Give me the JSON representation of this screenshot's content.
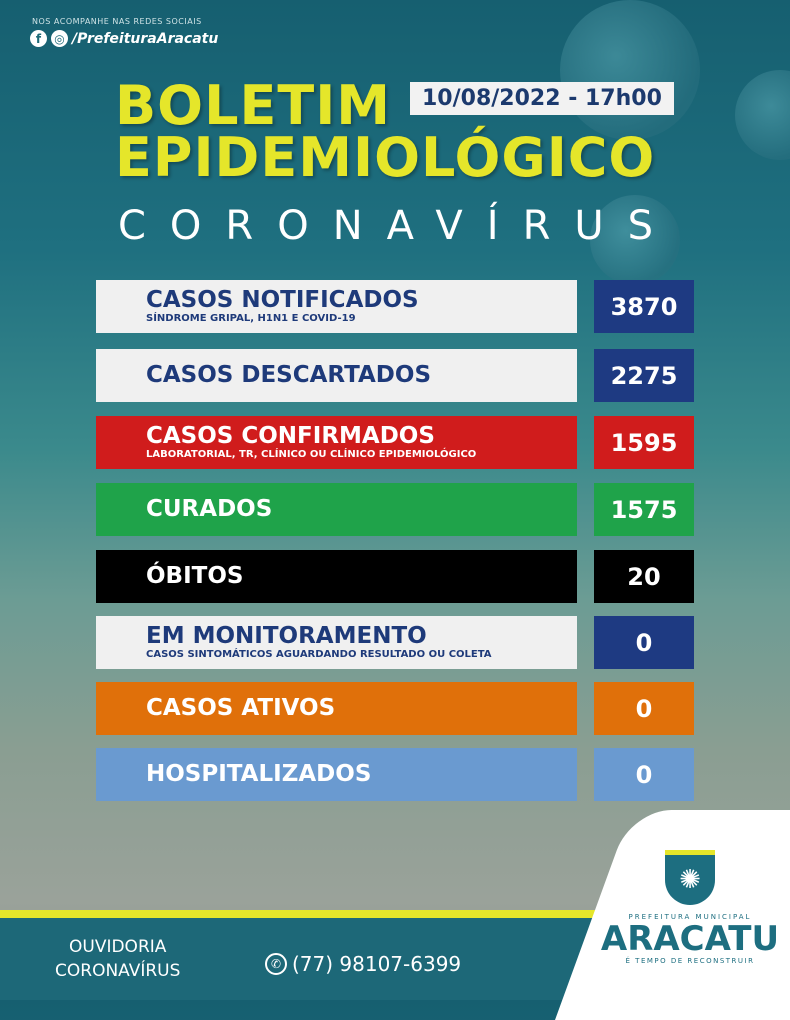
{
  "social": {
    "caption": "NOS ACOMPANHE NAS REDES SOCIAIS",
    "handle": "/PrefeituraAracatu",
    "icons": [
      "facebook-icon",
      "instagram-icon"
    ]
  },
  "header": {
    "title_line1": "BOLETIM",
    "title_line2": "EPIDEMIOLÓGICO",
    "date": "10/08/2022 - 17h00",
    "subtitle": "CORONAVÍRUS"
  },
  "rows": [
    {
      "label": "CASOS NOTIFICADOS",
      "sub": "SÍNDROME GRIPAL, H1N1 E COVID-19",
      "value": "3870",
      "label_bg": "#f0f0f0",
      "label_color": "#1e3a7a",
      "value_bg": "#1e3a82"
    },
    {
      "label": "CASOS DESCARTADOS",
      "sub": "",
      "value": "2275",
      "label_bg": "#f0f0f0",
      "label_color": "#1e3a7a",
      "value_bg": "#1e3a82"
    },
    {
      "label": "CASOS CONFIRMADOS",
      "sub": "LABORATORIAL, TR, CLÍNICO OU CLÍNICO EPIDEMIOLÓGICO",
      "value": "1595",
      "label_bg": "#d01c1c",
      "label_color": "#ffffff",
      "value_bg": "#d01c1c"
    },
    {
      "label": "CURADOS",
      "sub": "",
      "value": "1575",
      "label_bg": "#1fa34a",
      "label_color": "#ffffff",
      "value_bg": "#1fa34a"
    },
    {
      "label": "ÓBITOS",
      "sub": "",
      "value": "20",
      "label_bg": "#000000",
      "label_color": "#ffffff",
      "value_bg": "#000000"
    },
    {
      "label": "EM MONITORAMENTO",
      "sub": "CASOS SINTOMÁTICOS AGUARDANDO RESULTADO OU COLETA",
      "value": "0",
      "label_bg": "#f0f0f0",
      "label_color": "#1e3a7a",
      "value_bg": "#1e3a82"
    },
    {
      "label": "CASOS ATIVOS",
      "sub": "",
      "value": "0",
      "label_bg": "#e0700a",
      "label_color": "#ffffff",
      "value_bg": "#e0700a"
    },
    {
      "label": "HOSPITALIZADOS",
      "sub": "",
      "value": "0",
      "label_bg": "#6a9ad0",
      "label_color": "#ffffff",
      "value_bg": "#6a9ad0"
    }
  ],
  "footer": {
    "ouvidoria_line1": "OUVIDORIA",
    "ouvidoria_line2": "CORONAVÍRUS",
    "phone": "(77) 98107-6399",
    "phone_icon": "whatsapp-icon"
  },
  "logo": {
    "top": "PREFEITURA MUNICIPAL",
    "name": "ARACATU",
    "slogan": "É TEMPO DE RECONSTRUIR"
  }
}
